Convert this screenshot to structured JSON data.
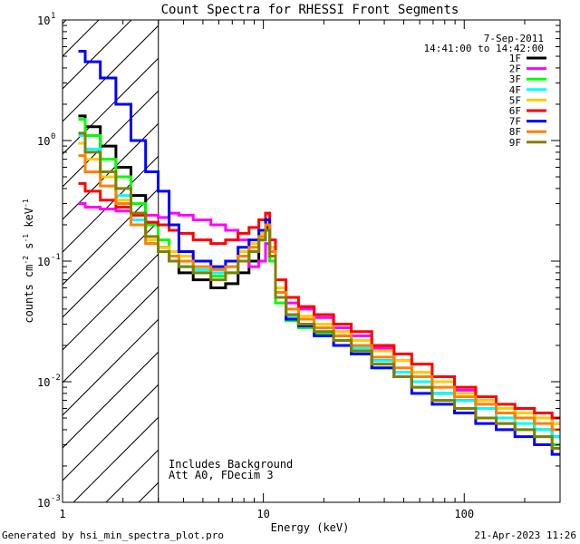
{
  "chart_data": {
    "type": "line",
    "style": "step",
    "scale": {
      "x": "log",
      "y": "log"
    },
    "title": "Count Spectra for RHESSI Front Segments",
    "xlabel": "Energy (keV)",
    "ylabel": {
      "base": "counts cm",
      "exp1": "-2",
      "mid": " s",
      "exp2": "-1",
      "tail": " keV",
      "exp3": "-1"
    },
    "xlim": [
      1.0,
      300.0
    ],
    "ylim": [
      0.001,
      10.0
    ],
    "x_tick_labels": [
      {
        "value": 1,
        "label": "1"
      },
      {
        "value": 10,
        "label": "10"
      },
      {
        "value": 100,
        "label": "100"
      }
    ],
    "y_tick_labels": [
      {
        "value": 0.001,
        "base": "10",
        "exp": "-3"
      },
      {
        "value": 0.01,
        "base": "10",
        "exp": "-2"
      },
      {
        "value": 0.1,
        "base": "10",
        "exp": "-1"
      },
      {
        "value": 1,
        "base": "10",
        "exp": "0"
      },
      {
        "value": 10,
        "base": "10",
        "exp": "1"
      }
    ],
    "date": "7-Sep-2011",
    "time_range": "14:41:00 to 14:42:00",
    "annotations": [
      "Includes Background",
      "Att A0, FDecim 3"
    ],
    "shaded_region_keV": [
      1.0,
      3.0
    ],
    "series": [
      {
        "name": "1F",
        "color": "#000000",
        "x": [
          1.2,
          1.4,
          1.7,
          2.0,
          2.4,
          2.8,
          3.2,
          3.6,
          4.0,
          5.0,
          6.0,
          7.0,
          8.0,
          9.0,
          10.0,
          10.5,
          11.0,
          12.0,
          14.0,
          16.0,
          20.0,
          25.0,
          30.0,
          40.0,
          50.0,
          60.0,
          80.0,
          100.0,
          130.0,
          160.0,
          200.0,
          250.0,
          300.0
        ],
        "y": [
          1.6,
          1.3,
          0.9,
          0.6,
          0.35,
          0.2,
          0.13,
          0.1,
          0.08,
          0.07,
          0.06,
          0.065,
          0.08,
          0.1,
          0.15,
          0.19,
          0.12,
          0.05,
          0.035,
          0.03,
          0.028,
          0.024,
          0.02,
          0.015,
          0.012,
          0.01,
          0.008,
          0.007,
          0.006,
          0.0055,
          0.005,
          0.004,
          0.0035
        ]
      },
      {
        "name": "2F",
        "color": "#ff00ff",
        "x": [
          1.2,
          1.4,
          1.7,
          2.0,
          2.4,
          2.8,
          3.2,
          3.6,
          4.0,
          5.0,
          6.0,
          7.0,
          8.0,
          9.0,
          10.0,
          10.5,
          11.0,
          12.0,
          14.0,
          16.0,
          20.0,
          25.0,
          30.0,
          40.0,
          50.0,
          60.0,
          80.0,
          100.0,
          130.0,
          160.0,
          200.0,
          250.0,
          300.0
        ],
        "y": [
          0.3,
          0.28,
          0.27,
          0.26,
          0.25,
          0.24,
          0.23,
          0.25,
          0.24,
          0.22,
          0.2,
          0.18,
          0.15,
          0.09,
          0.1,
          0.14,
          0.1,
          0.06,
          0.045,
          0.04,
          0.034,
          0.028,
          0.024,
          0.019,
          0.015,
          0.012,
          0.01,
          0.0085,
          0.007,
          0.006,
          0.0055,
          0.005,
          0.0045
        ]
      },
      {
        "name": "3F",
        "color": "#00ff00",
        "x": [
          1.2,
          1.4,
          1.7,
          2.0,
          2.4,
          2.8,
          3.2,
          3.6,
          4.0,
          5.0,
          6.0,
          7.0,
          8.0,
          9.0,
          10.0,
          10.5,
          11.0,
          12.0,
          14.0,
          16.0,
          20.0,
          25.0,
          30.0,
          40.0,
          50.0,
          60.0,
          80.0,
          100.0,
          130.0,
          160.0,
          200.0,
          250.0,
          300.0
        ],
        "y": [
          1.5,
          1.1,
          0.7,
          0.5,
          0.3,
          0.2,
          0.15,
          0.12,
          0.1,
          0.08,
          0.075,
          0.08,
          0.1,
          0.12,
          0.16,
          0.2,
          0.1,
          0.045,
          0.032,
          0.028,
          0.025,
          0.02,
          0.017,
          0.013,
          0.011,
          0.009,
          0.007,
          0.006,
          0.005,
          0.0045,
          0.004,
          0.0035,
          0.003
        ]
      },
      {
        "name": "4F",
        "color": "#00ffff",
        "x": [
          1.2,
          1.4,
          1.7,
          2.0,
          2.4,
          2.8,
          3.2,
          3.6,
          4.0,
          5.0,
          6.0,
          7.0,
          8.0,
          9.0,
          10.0,
          10.5,
          11.0,
          12.0,
          14.0,
          16.0,
          20.0,
          25.0,
          30.0,
          40.0,
          50.0,
          60.0,
          80.0,
          100.0,
          130.0,
          160.0,
          200.0,
          250.0,
          300.0
        ],
        "y": [
          1.1,
          0.85,
          0.55,
          0.35,
          0.22,
          0.14,
          0.12,
          0.1,
          0.09,
          0.085,
          0.08,
          0.09,
          0.11,
          0.12,
          0.15,
          0.18,
          0.12,
          0.05,
          0.035,
          0.03,
          0.026,
          0.022,
          0.019,
          0.015,
          0.012,
          0.01,
          0.008,
          0.007,
          0.006,
          0.005,
          0.0045,
          0.004,
          0.0035
        ]
      },
      {
        "name": "5F",
        "color": "#ffcc00",
        "x": [
          1.2,
          1.4,
          1.7,
          2.0,
          2.4,
          2.8,
          3.2,
          3.6,
          4.0,
          5.0,
          6.0,
          7.0,
          8.0,
          9.0,
          10.0,
          10.5,
          11.0,
          12.0,
          14.0,
          16.0,
          20.0,
          25.0,
          30.0,
          40.0,
          50.0,
          60.0,
          80.0,
          100.0,
          130.0,
          160.0,
          200.0,
          250.0,
          300.0
        ],
        "y": [
          0.95,
          0.7,
          0.5,
          0.32,
          0.2,
          0.15,
          0.13,
          0.12,
          0.11,
          0.1,
          0.09,
          0.1,
          0.12,
          0.14,
          0.17,
          0.21,
          0.13,
          0.06,
          0.04,
          0.035,
          0.03,
          0.026,
          0.022,
          0.018,
          0.015,
          0.012,
          0.01,
          0.008,
          0.007,
          0.006,
          0.0055,
          0.005,
          0.0045
        ]
      },
      {
        "name": "6F",
        "color": "#ff0000",
        "x": [
          1.2,
          1.4,
          1.7,
          2.0,
          2.4,
          2.8,
          3.2,
          3.6,
          4.0,
          5.0,
          6.0,
          7.0,
          8.0,
          9.0,
          10.0,
          10.5,
          11.0,
          12.0,
          14.0,
          16.0,
          20.0,
          25.0,
          30.0,
          40.0,
          50.0,
          60.0,
          80.0,
          100.0,
          130.0,
          160.0,
          200.0,
          250.0,
          300.0
        ],
        "y": [
          0.44,
          0.38,
          0.32,
          0.28,
          0.24,
          0.21,
          0.2,
          0.18,
          0.17,
          0.15,
          0.14,
          0.15,
          0.17,
          0.19,
          0.22,
          0.25,
          0.15,
          0.07,
          0.05,
          0.042,
          0.036,
          0.03,
          0.026,
          0.02,
          0.017,
          0.014,
          0.011,
          0.009,
          0.0075,
          0.0065,
          0.006,
          0.0055,
          0.005
        ]
      },
      {
        "name": "7F",
        "color": "#0000ff",
        "x": [
          1.2,
          1.4,
          1.7,
          2.0,
          2.4,
          2.8,
          3.2,
          3.6,
          4.0,
          5.0,
          6.0,
          7.0,
          8.0,
          9.0,
          10.0,
          10.5,
          11.0,
          12.0,
          14.0,
          16.0,
          20.0,
          25.0,
          30.0,
          40.0,
          50.0,
          60.0,
          80.0,
          100.0,
          130.0,
          160.0,
          200.0,
          250.0,
          300.0
        ],
        "y": [
          5.5,
          4.5,
          3.3,
          2.0,
          1.0,
          0.55,
          0.38,
          0.2,
          0.12,
          0.1,
          0.09,
          0.1,
          0.13,
          0.15,
          0.18,
          0.22,
          0.12,
          0.05,
          0.033,
          0.029,
          0.024,
          0.02,
          0.017,
          0.013,
          0.011,
          0.008,
          0.0065,
          0.0055,
          0.0045,
          0.004,
          0.0035,
          0.003,
          0.0025
        ]
      },
      {
        "name": "8F",
        "color": "#ff8000",
        "x": [
          1.2,
          1.4,
          1.7,
          2.0,
          2.4,
          2.8,
          3.2,
          3.6,
          4.0,
          5.0,
          6.0,
          7.0,
          8.0,
          9.0,
          10.0,
          10.5,
          11.0,
          12.0,
          14.0,
          16.0,
          20.0,
          25.0,
          30.0,
          40.0,
          50.0,
          60.0,
          80.0,
          100.0,
          130.0,
          160.0,
          200.0,
          250.0,
          300.0
        ],
        "y": [
          0.75,
          0.55,
          0.42,
          0.3,
          0.2,
          0.14,
          0.12,
          0.11,
          0.1,
          0.09,
          0.085,
          0.09,
          0.11,
          0.13,
          0.16,
          0.2,
          0.12,
          0.055,
          0.04,
          0.033,
          0.028,
          0.024,
          0.02,
          0.016,
          0.013,
          0.011,
          0.009,
          0.0075,
          0.0065,
          0.0055,
          0.005,
          0.0045,
          0.004
        ]
      },
      {
        "name": "9F",
        "color": "#808000",
        "x": [
          1.2,
          1.4,
          1.7,
          2.0,
          2.4,
          2.8,
          3.2,
          3.6,
          4.0,
          5.0,
          6.0,
          7.0,
          8.0,
          9.0,
          10.0,
          10.5,
          11.0,
          12.0,
          14.0,
          16.0,
          20.0,
          25.0,
          30.0,
          40.0,
          50.0,
          60.0,
          80.0,
          100.0,
          130.0,
          160.0,
          200.0,
          250.0,
          300.0
        ],
        "y": [
          1.15,
          0.8,
          0.55,
          0.4,
          0.25,
          0.16,
          0.12,
          0.1,
          0.09,
          0.08,
          0.07,
          0.08,
          0.1,
          0.12,
          0.15,
          0.18,
          0.11,
          0.05,
          0.036,
          0.03,
          0.026,
          0.022,
          0.018,
          0.014,
          0.011,
          0.009,
          0.007,
          0.006,
          0.005,
          0.0045,
          0.004,
          0.0035,
          0.0028
        ]
      }
    ]
  },
  "footer": {
    "generator": "Generated by hsi_min_spectra_plot.pro",
    "timestamp": "21-Apr-2023 11:26"
  }
}
